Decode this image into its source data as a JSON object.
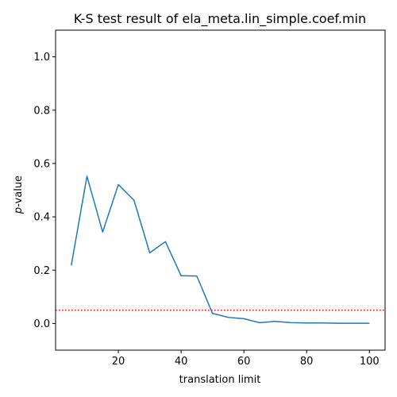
{
  "chart_data": {
    "type": "line",
    "title": "K-S test result of ela_meta.lin_simple.coef.min",
    "xlabel": "translation limit",
    "ylabel_italic": "p",
    "ylabel_rest": "-value",
    "xlim": [
      0,
      105
    ],
    "ylim": [
      -0.1,
      1.1
    ],
    "xticks": [
      20,
      40,
      60,
      80,
      100
    ],
    "yticks": [
      0.0,
      0.2,
      0.4,
      0.6,
      0.8,
      1.0
    ],
    "xtick_labels": [
      "20",
      "40",
      "60",
      "80",
      "100"
    ],
    "ytick_labels": [
      "0.0",
      "0.2",
      "0.4",
      "0.6",
      "0.8",
      "1.0"
    ],
    "grid": false,
    "series": [
      {
        "color": "#1f77b4",
        "x": [
          5,
          10,
          15,
          20,
          25,
          30,
          35,
          40,
          45,
          50,
          55,
          60,
          65,
          70,
          75,
          80,
          85,
          90,
          95,
          100
        ],
        "y": [
          0.218,
          0.552,
          0.343,
          0.521,
          0.462,
          0.265,
          0.307,
          0.179,
          0.178,
          0.038,
          0.023,
          0.018,
          0.003,
          0.008,
          0.003,
          0.002,
          0.002,
          0.001,
          0.001,
          0.001
        ]
      }
    ],
    "reference_line": {
      "y": 0.05,
      "color": "#ff0000",
      "style": "dotted"
    }
  }
}
